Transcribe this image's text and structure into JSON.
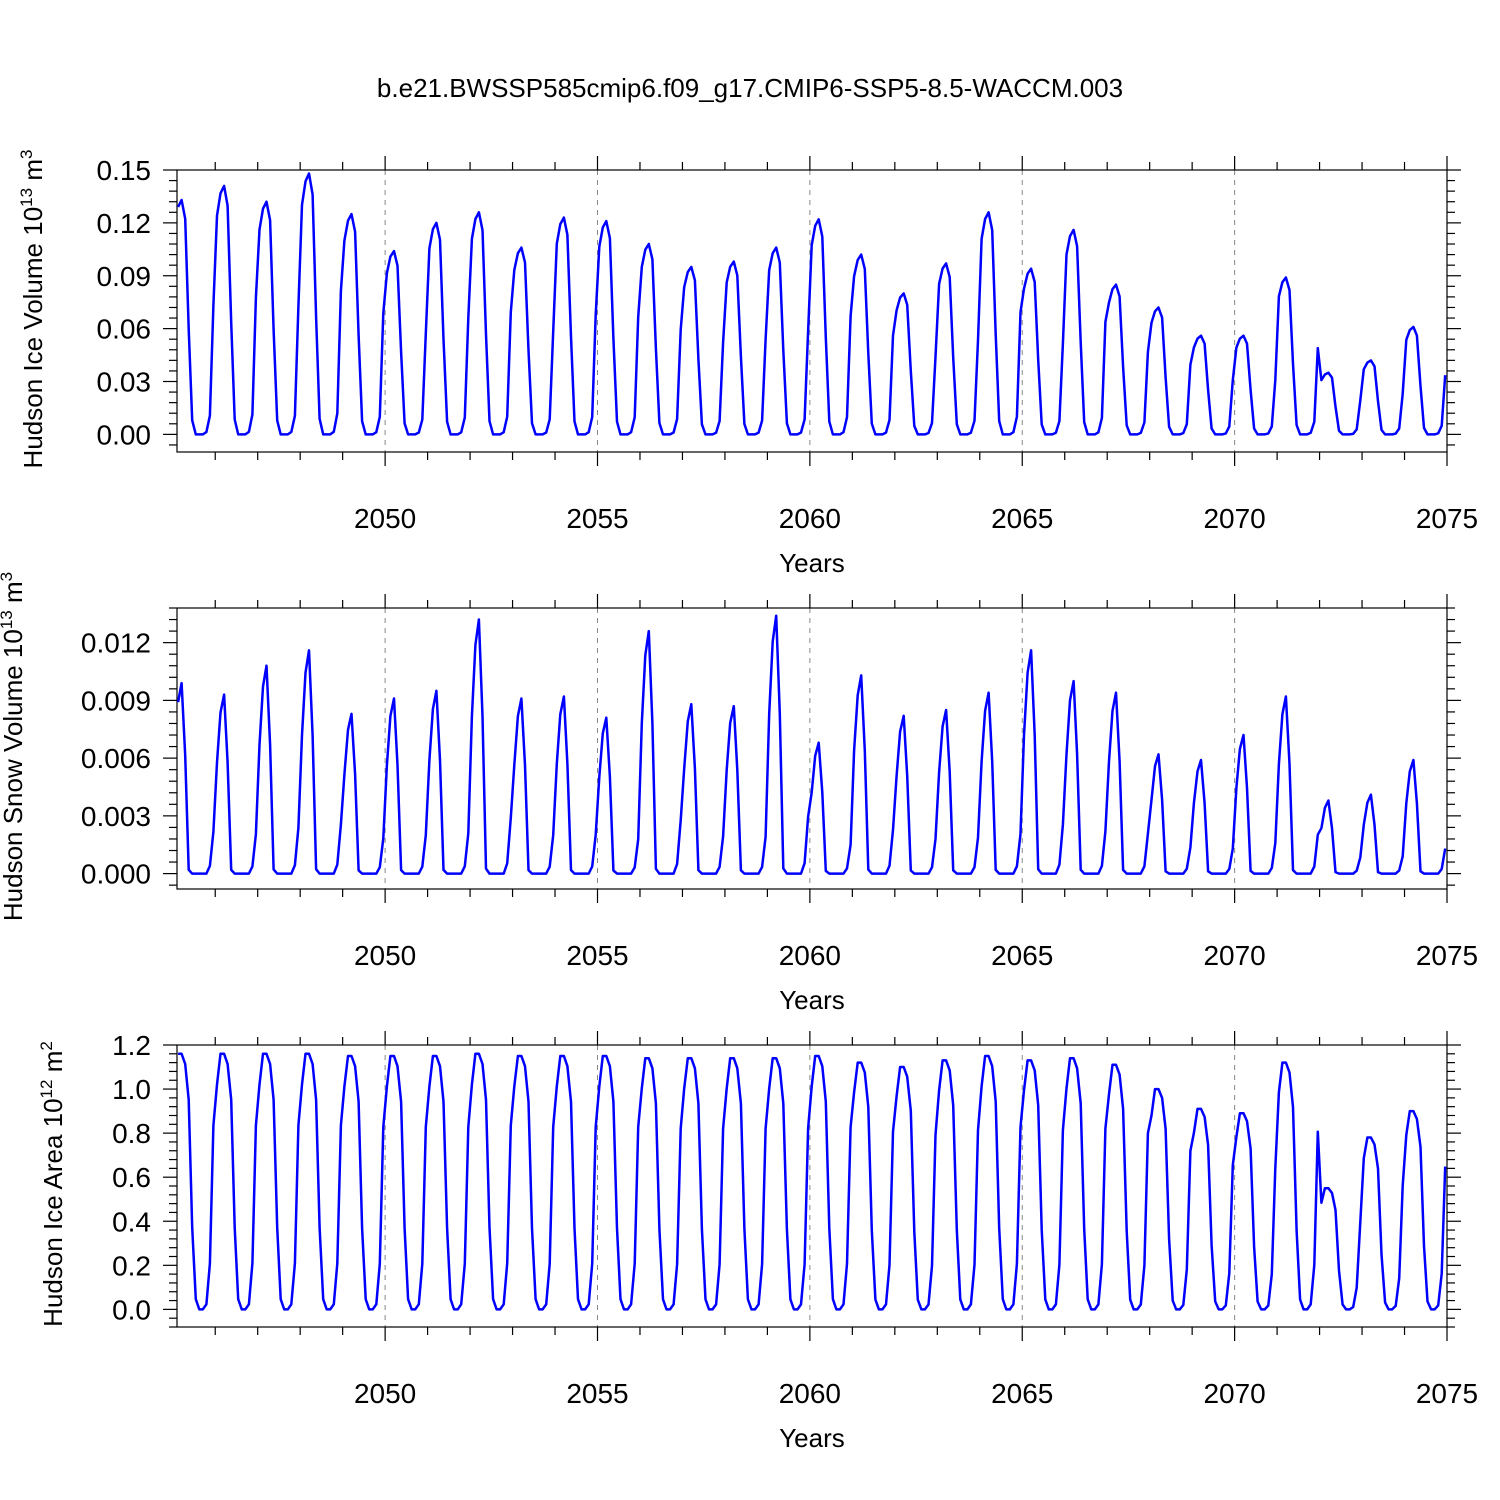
{
  "title": "b.e21.BWSSP585cmip6.f09_g17.CMIP6-SSP5-8.5-WACCM.003",
  "colors": {
    "series": "#0000ff",
    "grid": "#888888"
  },
  "chart_data": [
    {
      "id": "ice-volume",
      "type": "line",
      "ylabel_main": "Hudson Ice Volume 10",
      "ylabel_exp": "13",
      "ylabel_unit": " m",
      "ylabel_unit_exp": "3",
      "xlabel": "Years",
      "xlim": [
        2045.1,
        2075.0
      ],
      "ylim": [
        -0.01,
        0.15
      ],
      "yticks": [
        0.0,
        0.03,
        0.06,
        0.09,
        0.12,
        0.15
      ],
      "ytick_labels": [
        "0.00",
        "0.03",
        "0.06",
        "0.09",
        "0.12",
        "0.15"
      ],
      "xticks": [
        2050,
        2055,
        2060,
        2065,
        2070,
        2075
      ],
      "xtick_labels": [
        "2050",
        "2055",
        "2060",
        "2065",
        "2070",
        "2075"
      ],
      "grid_x": "dashed at labeled years",
      "annual_peaks": [
        0.133,
        0.141,
        0.132,
        0.148,
        0.125,
        0.104,
        0.12,
        0.126,
        0.106,
        0.123,
        0.121,
        0.108,
        0.095,
        0.098,
        0.106,
        0.122,
        0.102,
        0.08,
        0.097,
        0.126,
        0.094,
        0.116,
        0.085,
        0.072,
        0.056,
        0.056,
        0.089,
        0.035,
        0.042,
        0.061
      ],
      "x_start": 2045.1,
      "series": [
        {
          "values": []
        }
      ]
    },
    {
      "id": "snow-volume",
      "type": "line",
      "ylabel_main": "Hudson Snow Volume 10",
      "ylabel_exp": "13",
      "ylabel_unit": " m",
      "ylabel_unit_exp": "3",
      "xlabel": "Years",
      "xlim": [
        2045.1,
        2075.0
      ],
      "ylim": [
        -0.0008,
        0.0138
      ],
      "yticks": [
        0.0,
        0.003,
        0.006,
        0.009,
        0.012
      ],
      "ytick_labels": [
        "0.000",
        "0.003",
        "0.006",
        "0.009",
        "0.012"
      ],
      "xticks": [
        2050,
        2055,
        2060,
        2065,
        2070,
        2075
      ],
      "xtick_labels": [
        "2050",
        "2055",
        "2060",
        "2065",
        "2070",
        "2075"
      ],
      "grid_x": "dashed at labeled years",
      "annual_peaks": [
        0.0099,
        0.0093,
        0.0108,
        0.0116,
        0.0083,
        0.0091,
        0.0095,
        0.0132,
        0.0091,
        0.0092,
        0.0081,
        0.0126,
        0.0088,
        0.0087,
        0.0134,
        0.0068,
        0.0103,
        0.0082,
        0.0085,
        0.0094,
        0.0116,
        0.01,
        0.0094,
        0.0062,
        0.0059,
        0.0072,
        0.0092,
        0.0038,
        0.0041,
        0.0059
      ],
      "x_start": 2045.1,
      "series": [
        {
          "values": []
        }
      ]
    },
    {
      "id": "ice-area",
      "type": "line",
      "ylabel_main": "Hudson Ice Area 10",
      "ylabel_exp": "12",
      "ylabel_unit": " m",
      "ylabel_unit_exp": "2",
      "xlabel": "Years",
      "xlim": [
        2045.1,
        2075.0
      ],
      "ylim": [
        -0.08,
        1.2
      ],
      "yticks": [
        0.0,
        0.2,
        0.4,
        0.6,
        0.8,
        1.0,
        1.2
      ],
      "ytick_labels": [
        "0.0",
        "0.2",
        "0.4",
        "0.6",
        "0.8",
        "1.0",
        "1.2"
      ],
      "xticks": [
        2050,
        2055,
        2060,
        2065,
        2070,
        2075
      ],
      "xtick_labels": [
        "2050",
        "2055",
        "2060",
        "2065",
        "2070",
        "2075"
      ],
      "grid_x": "dashed at labeled years",
      "annual_peaks": [
        1.16,
        1.16,
        1.16,
        1.16,
        1.15,
        1.15,
        1.15,
        1.16,
        1.15,
        1.15,
        1.15,
        1.14,
        1.14,
        1.14,
        1.14,
        1.15,
        1.12,
        1.1,
        1.13,
        1.15,
        1.13,
        1.14,
        1.11,
        1.0,
        0.91,
        0.89,
        1.12,
        0.55,
        0.78,
        0.9
      ],
      "x_start": 2045.1,
      "series": [
        {
          "values": []
        }
      ]
    }
  ]
}
